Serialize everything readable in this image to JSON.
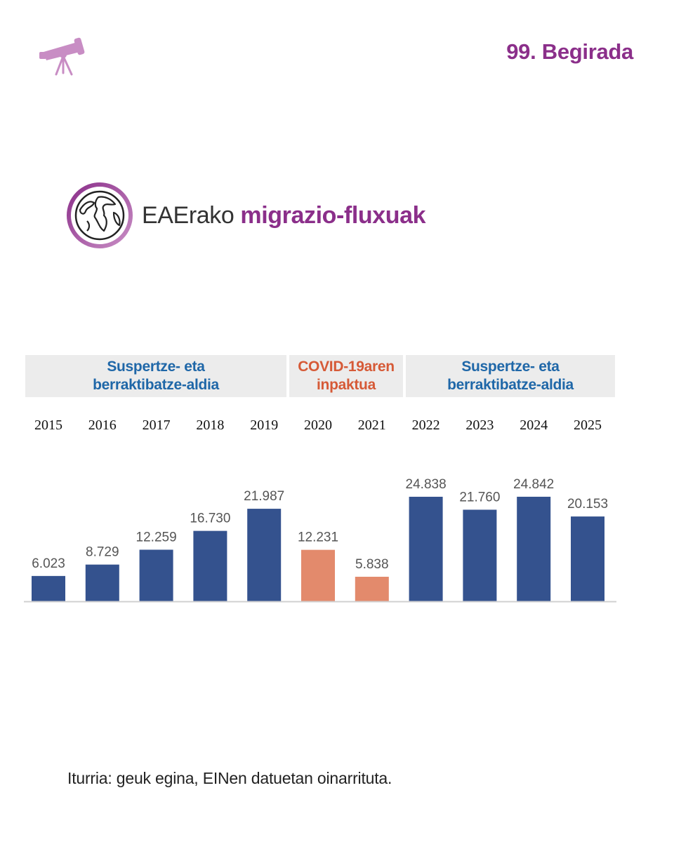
{
  "header": {
    "issue_label": "99. Begirada"
  },
  "title": {
    "prefix": "EAErako",
    "highlight": "migrazio-fluxuak"
  },
  "colors": {
    "accent_purple": "#8b2f8a",
    "telescope_pink": "#c88dc4",
    "bar_blue": "#34528e",
    "bar_orange": "#e38a6c",
    "label_blue": "#1f67a8",
    "label_orange": "#d65a37",
    "band_gray": "#ececec"
  },
  "periods": [
    {
      "label_line1": "Suspertze- eta",
      "label_line2": "berraktibatze-aldia",
      "color": "blue"
    },
    {
      "label_line1": "COVID-19aren",
      "label_line2": "inpaktua",
      "color": "orange"
    },
    {
      "label_line1": "Suspertze- eta",
      "label_line2": "berraktibatze-aldia",
      "color": "blue"
    }
  ],
  "chart_data": {
    "type": "bar",
    "title": "EAErako migrazio-fluxuak",
    "categories": [
      "2015",
      "2016",
      "2017",
      "2018",
      "2019",
      "2020",
      "2021",
      "2022",
      "2023",
      "2024",
      "2025"
    ],
    "values": [
      6023,
      8729,
      12259,
      16730,
      21987,
      12231,
      5838,
      24838,
      21760,
      24842,
      20153
    ],
    "value_labels": [
      "6.023",
      "8.729",
      "12.259",
      "16.730",
      "21.987",
      "12.231",
      "5.838",
      "24.838",
      "21.760",
      "24.842",
      "20.153"
    ],
    "series_group": [
      "recovery",
      "recovery",
      "recovery",
      "recovery",
      "recovery",
      "covid",
      "covid",
      "recovery",
      "recovery",
      "recovery",
      "recovery"
    ],
    "xlabel": "",
    "ylabel": "",
    "ylim": [
      0,
      27000
    ],
    "grid": false,
    "legend": "none"
  },
  "source": {
    "text": "Iturria: geuk egina, EINen datuetan oinarrituta."
  }
}
